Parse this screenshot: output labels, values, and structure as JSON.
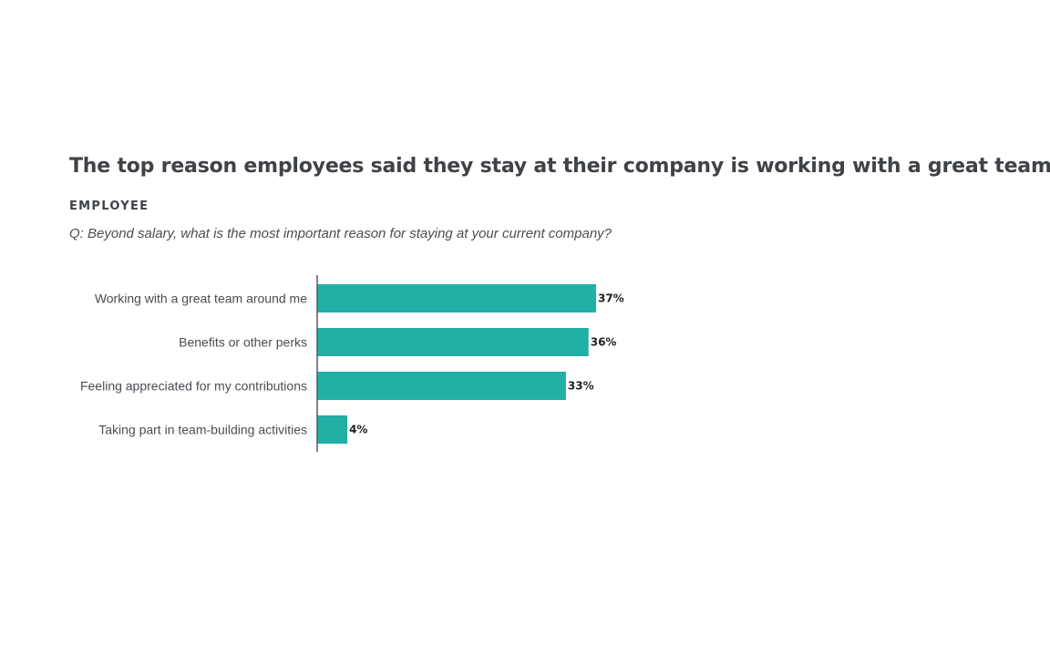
{
  "headline": "The top reason employees said they stay at their company is working with a great team.",
  "eyebrow": "EMPLOYEE",
  "question": "Q: Beyond salary, what is the most important reason for staying at your current company?",
  "colors": {
    "bar": "#22afa5",
    "axis": "#555a60"
  },
  "chart_data": {
    "type": "bar",
    "orientation": "horizontal",
    "categories": [
      "Working with a great team around me",
      "Benefits or other perks",
      "Feeling appreciated for my contributions",
      "Taking part in team-building activities"
    ],
    "values": [
      37,
      36,
      33,
      4
    ],
    "value_labels": [
      "37%",
      "36%",
      "33%",
      "4%"
    ],
    "unit": "%",
    "xlim": [
      0,
      100
    ],
    "grid": false,
    "legend": "none"
  }
}
